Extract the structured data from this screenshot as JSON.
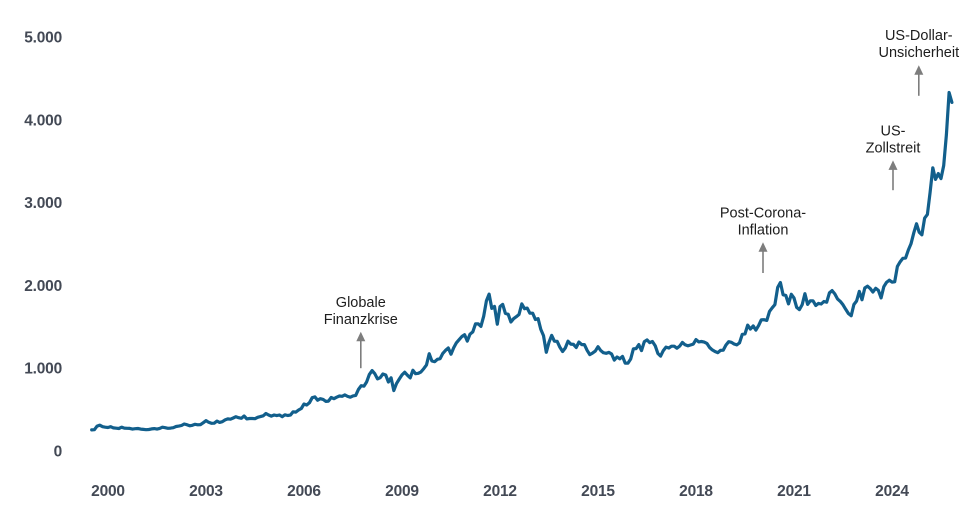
{
  "chart_data": {
    "type": "line",
    "title": "",
    "xlabel": "",
    "ylabel": "",
    "grid": false,
    "legend": "none",
    "ylim": [
      0,
      5000
    ],
    "xlim": [
      1999.4,
      2026.1
    ],
    "y_axis": {
      "ticks": [
        {
          "value": 5000,
          "label": "5.000"
        },
        {
          "value": 4000,
          "label": "4.000"
        },
        {
          "value": 3000,
          "label": "3.000"
        },
        {
          "value": 2000,
          "label": "2.000"
        },
        {
          "value": 1000,
          "label": "1.000"
        },
        {
          "value": 0,
          "label": "0"
        }
      ]
    },
    "x_axis": {
      "ticks": [
        {
          "value": 2000,
          "label": "2000"
        },
        {
          "value": 2003,
          "label": "2003"
        },
        {
          "value": 2006,
          "label": "2006"
        },
        {
          "value": 2009,
          "label": "2009"
        },
        {
          "value": 2012,
          "label": "2012"
        },
        {
          "value": 2015,
          "label": "2015"
        },
        {
          "value": 2018,
          "label": "2018"
        },
        {
          "value": 2021,
          "label": "2021"
        },
        {
          "value": 2024,
          "label": "2024"
        }
      ]
    },
    "x_start": 1999.5,
    "x_step_years": 0.0833333,
    "values": [
      255,
      257,
      301,
      311,
      294,
      288,
      284,
      294,
      279,
      275,
      272,
      288,
      277,
      274,
      273,
      264,
      269,
      272,
      264,
      261,
      257,
      260,
      267,
      270,
      265,
      273,
      287,
      281,
      274,
      276,
      281,
      296,
      301,
      308,
      326,
      318,
      304,
      310,
      323,
      316,
      319,
      342,
      367,
      347,
      334,
      336,
      361,
      346,
      354,
      375,
      388,
      384,
      398,
      414,
      402,
      395,
      423,
      388,
      393,
      392,
      390,
      407,
      415,
      425,
      453,
      435,
      422,
      435,
      427,
      435,
      414,
      437,
      429,
      433,
      473,
      470,
      495,
      513,
      568,
      556,
      582,
      644,
      653,
      613,
      632,
      623,
      599,
      603,
      646,
      632,
      650,
      664,
      661,
      677,
      659,
      650,
      665,
      672,
      743,
      789,
      783,
      833,
      923,
      971,
      933,
      871,
      885,
      930,
      918,
      833,
      884,
      730,
      814,
      869,
      919,
      952,
      916,
      883,
      975,
      934,
      939,
      955,
      995,
      1040,
      1175,
      1087,
      1078,
      1108,
      1115,
      1179,
      1215,
      1244,
      1169,
      1246,
      1307,
      1346,
      1383,
      1405,
      1327,
      1411,
      1439,
      1535,
      1536,
      1505,
      1628,
      1813,
      1895,
      1722,
      1746,
      1531,
      1744,
      1770,
      1662,
      1651,
      1558,
      1598,
      1622,
      1648,
      1776,
      1719,
      1726,
      1664,
      1664,
      1588,
      1598,
      1469,
      1394,
      1192,
      1314,
      1396,
      1326,
      1324,
      1253,
      1202,
      1244,
      1326,
      1291,
      1288,
      1250,
      1315,
      1285,
      1285,
      1216,
      1164,
      1182,
      1206,
      1260,
      1214,
      1187,
      1180,
      1191,
      1171,
      1098,
      1135,
      1114,
      1142,
      1061,
      1060,
      1111,
      1234,
      1237,
      1285,
      1212,
      1320,
      1342,
      1309,
      1322,
      1272,
      1178,
      1146,
      1212,
      1255,
      1244,
      1266,
      1266,
      1242,
      1267,
      1311,
      1283,
      1271,
      1280,
      1291,
      1345,
      1318,
      1323,
      1315,
      1300,
      1250,
      1221,
      1202,
      1187,
      1215,
      1217,
      1279,
      1320,
      1313,
      1292,
      1282,
      1306,
      1409,
      1414,
      1520,
      1472,
      1511,
      1460,
      1515,
      1584,
      1586,
      1577,
      1686,
      1730,
      1768,
      1976,
      2035,
      1886,
      1879,
      1777,
      1892,
      1848,
      1734,
      1708,
      1768,
      1900,
      1771,
      1814,
      1814,
      1757,
      1783,
      1775,
      1806,
      1797,
      1909,
      1937,
      1897,
      1837,
      1807,
      1766,
      1711,
      1661,
      1634,
      1769,
      1812,
      1928,
      1827,
      1969,
      1990,
      1962,
      1919,
      1965,
      1940,
      1849,
      1984,
      2036,
      2063,
      2040,
      2044,
      2230,
      2286,
      2327,
      2331,
      2426,
      2503,
      2635,
      2744,
      2643,
      2611,
      2812,
      2858,
      3124,
      3420,
      3280,
      3350,
      3290,
      3448,
      3820,
      4330,
      4210
    ],
    "annotations": [
      {
        "id": "globale-finanzkrise",
        "lines": [
          "Globale",
          "Finanzkrise"
        ],
        "year": 2007.74,
        "arrow_from": 1000,
        "arrow_to": 1440
      },
      {
        "id": "post-corona-inflation",
        "lines": [
          "Post-Corona-",
          "Inflation"
        ],
        "year": 2020.05,
        "arrow_from": 2150,
        "arrow_to": 2520
      },
      {
        "id": "us-zollstreit",
        "lines": [
          "US-",
          "Zollstreit"
        ],
        "year": 2024.03,
        "arrow_from": 3150,
        "arrow_to": 3510
      },
      {
        "id": "us-dollar-unsicherheit",
        "lines": [
          "US-Dollar-",
          "Unsicherheit"
        ],
        "year": 2024.82,
        "arrow_from": 4290,
        "arrow_to": 4660
      }
    ]
  },
  "colors": {
    "line": "#125f8c",
    "axis_text": "#434955",
    "annotation_text": "#1d1d1d",
    "arrow": "#7d7d7d",
    "background": "#ffffff"
  }
}
